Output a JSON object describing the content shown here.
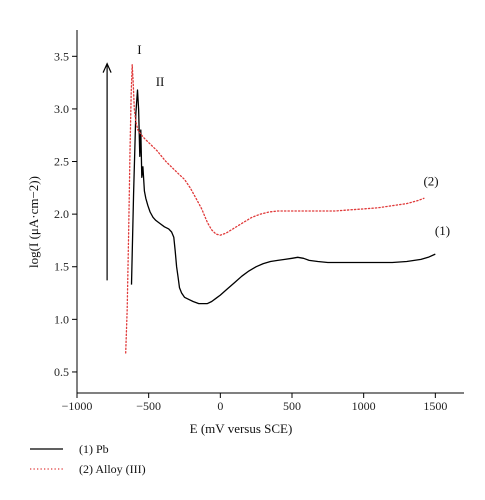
{
  "chart_data": {
    "type": "line",
    "xlabel": "E (mV versus SCE)",
    "ylabel": "log(I (μA·cm−2))",
    "xlim": [
      -1000,
      1700
    ],
    "ylim": [
      0.3,
      3.75
    ],
    "x_ticks": [
      -1000,
      -500,
      0,
      500,
      1000,
      1500
    ],
    "y_ticks": [
      0.5,
      1.0,
      1.5,
      2.0,
      2.5,
      3.0,
      3.5
    ],
    "x_tick_labels": [
      "−1000",
      "−500",
      "0",
      "500",
      "1000",
      "1500"
    ],
    "y_tick_labels": [
      "0.5",
      "1.0",
      "1.5",
      "2.0",
      "2.5",
      "3.0",
      "3.5"
    ],
    "grid": false,
    "legend_position": "bottom-left (below plot)",
    "series": [
      {
        "name": "(1) Pb",
        "style": "solid",
        "color": "#000000",
        "label": "(1)",
        "label_at": [
          1550,
          1.8
        ],
        "points": [
          [
            -620,
            1.33
          ],
          [
            -605,
            2.2
          ],
          [
            -590,
            2.95
          ],
          [
            -578,
            3.18
          ],
          [
            -570,
            3.0
          ],
          [
            -562,
            2.55
          ],
          [
            -555,
            2.8
          ],
          [
            -548,
            2.35
          ],
          [
            -540,
            2.45
          ],
          [
            -530,
            2.22
          ],
          [
            -520,
            2.15
          ],
          [
            -505,
            2.08
          ],
          [
            -490,
            2.02
          ],
          [
            -470,
            1.97
          ],
          [
            -450,
            1.94
          ],
          [
            -420,
            1.91
          ],
          [
            -390,
            1.88
          ],
          [
            -360,
            1.86
          ],
          [
            -340,
            1.83
          ],
          [
            -325,
            1.78
          ],
          [
            -315,
            1.65
          ],
          [
            -305,
            1.5
          ],
          [
            -295,
            1.4
          ],
          [
            -285,
            1.3
          ],
          [
            -270,
            1.25
          ],
          [
            -250,
            1.21
          ],
          [
            -220,
            1.19
          ],
          [
            -190,
            1.17
          ],
          [
            -150,
            1.15
          ],
          [
            -120,
            1.15
          ],
          [
            -90,
            1.15
          ],
          [
            -60,
            1.17
          ],
          [
            -30,
            1.2
          ],
          [
            0,
            1.23
          ],
          [
            50,
            1.29
          ],
          [
            100,
            1.35
          ],
          [
            150,
            1.41
          ],
          [
            200,
            1.46
          ],
          [
            250,
            1.5
          ],
          [
            300,
            1.53
          ],
          [
            350,
            1.55
          ],
          [
            400,
            1.56
          ],
          [
            450,
            1.57
          ],
          [
            500,
            1.58
          ],
          [
            540,
            1.59
          ],
          [
            580,
            1.58
          ],
          [
            620,
            1.56
          ],
          [
            680,
            1.55
          ],
          [
            750,
            1.54
          ],
          [
            900,
            1.54
          ],
          [
            1050,
            1.54
          ],
          [
            1200,
            1.54
          ],
          [
            1300,
            1.55
          ],
          [
            1400,
            1.57
          ],
          [
            1450,
            1.59
          ],
          [
            1500,
            1.62
          ]
        ],
        "peak_label": "II",
        "peak_label_at": [
          -560,
          3.22
        ]
      },
      {
        "name": "(2) Alloy (III)",
        "style": "dotted",
        "color": "#e03a3a",
        "label": "(2)",
        "label_at": [
          1470,
          2.27
        ],
        "points": [
          [
            -660,
            0.68
          ],
          [
            -650,
            1.1
          ],
          [
            -640,
            1.8
          ],
          [
            -630,
            2.6
          ],
          [
            -622,
            3.15
          ],
          [
            -615,
            3.42
          ],
          [
            -608,
            3.25
          ],
          [
            -600,
            3.0
          ],
          [
            -590,
            2.88
          ],
          [
            -575,
            2.8
          ],
          [
            -555,
            2.76
          ],
          [
            -530,
            2.72
          ],
          [
            -500,
            2.68
          ],
          [
            -470,
            2.64
          ],
          [
            -440,
            2.6
          ],
          [
            -410,
            2.55
          ],
          [
            -380,
            2.5
          ],
          [
            -350,
            2.46
          ],
          [
            -320,
            2.42
          ],
          [
            -290,
            2.38
          ],
          [
            -250,
            2.33
          ],
          [
            -210,
            2.25
          ],
          [
            -170,
            2.15
          ],
          [
            -130,
            2.05
          ],
          [
            -90,
            1.92
          ],
          [
            -60,
            1.85
          ],
          [
            -30,
            1.81
          ],
          [
            0,
            1.8
          ],
          [
            40,
            1.82
          ],
          [
            100,
            1.87
          ],
          [
            160,
            1.92
          ],
          [
            220,
            1.97
          ],
          [
            280,
            2.0
          ],
          [
            340,
            2.02
          ],
          [
            400,
            2.03
          ],
          [
            500,
            2.03
          ],
          [
            600,
            2.03
          ],
          [
            700,
            2.03
          ],
          [
            800,
            2.03
          ],
          [
            900,
            2.04
          ],
          [
            1000,
            2.05
          ],
          [
            1100,
            2.06
          ],
          [
            1200,
            2.08
          ],
          [
            1300,
            2.1
          ],
          [
            1380,
            2.13
          ],
          [
            1420,
            2.15
          ]
        ],
        "peak_label": "I",
        "peak_label_at": [
          -620,
          3.52
        ]
      }
    ],
    "annotations": [
      {
        "type": "arrow",
        "from": [
          -790,
          1.37
        ],
        "to": [
          -790,
          3.43
        ]
      }
    ]
  }
}
